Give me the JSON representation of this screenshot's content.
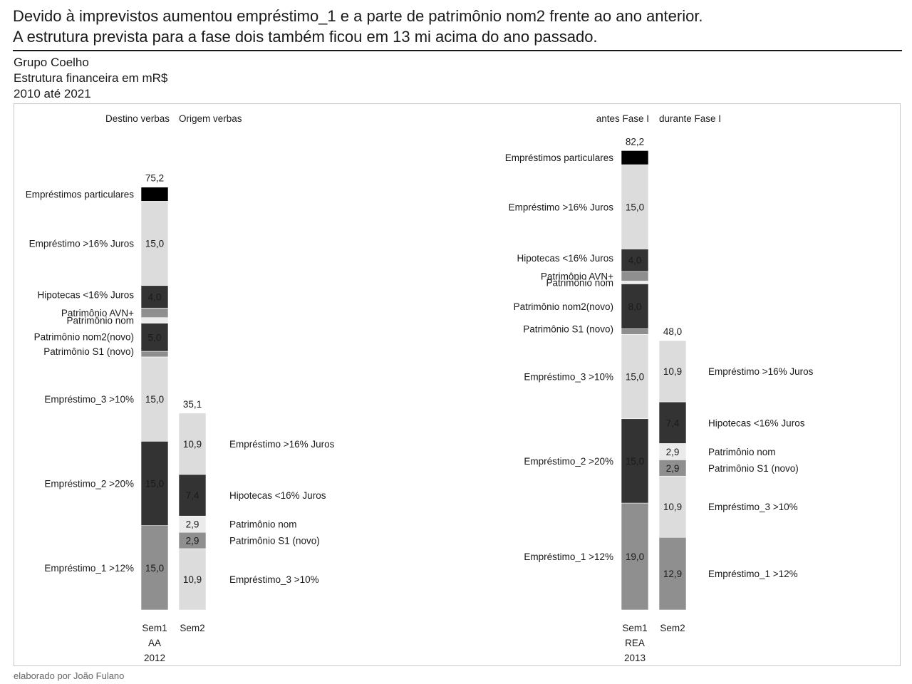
{
  "headline": {
    "line1": "Devido à imprevistos aumentou empréstimo_1 e a parte de patrimônio nom2 frente ao ano anterior.",
    "line2": "A estrutura prevista para a fase dois também ficou em 13 mi acima do ano passado."
  },
  "meta": {
    "company": "Grupo Coelho",
    "subject": "Estrutura financeira em mR$",
    "period": "2010 até 2021"
  },
  "footer": "elaborado por João Fulano",
  "colors": {
    "black": "#000000",
    "dark": "#333333",
    "mid": "#8f8f8f",
    "light": "#dcdcdc",
    "verylight": "#ebebeb"
  },
  "chart_data": [
    {
      "type": "bar",
      "stacked": true,
      "headers": [
        "Destino verbas",
        "Origem verbas"
      ],
      "bars": [
        {
          "category": [
            "Sem1",
            "AA",
            "2012"
          ],
          "total": "75,2",
          "segments": [
            {
              "name": "Empréstimo_1 >12%",
              "value": 15.0,
              "label": "15,0",
              "color": "mid"
            },
            {
              "name": "Empréstimo_2 >20%",
              "value": 15.0,
              "label": "15,0",
              "color": "dark"
            },
            {
              "name": "Empréstimo_3 >10%",
              "value": 15.0,
              "label": "15,0",
              "color": "light"
            },
            {
              "name": "Patrimônio S1 (novo)",
              "value": 1.0,
              "label": "",
              "color": "mid"
            },
            {
              "name": "Patrimônio nom2(novo)",
              "value": 5.0,
              "label": "5,0",
              "color": "dark"
            },
            {
              "name": "Patrimônio nom",
              "value": 1.0,
              "label": "",
              "color": "verylight"
            },
            {
              "name": "Patrimônio AVN+",
              "value": 1.7,
              "label": "",
              "color": "mid"
            },
            {
              "name": "Hipotecas <16% Juros",
              "value": 4.0,
              "label": "4,0",
              "color": "dark"
            },
            {
              "name": "Empréstimo >16% Juros",
              "value": 15.0,
              "label": "15,0",
              "color": "light"
            },
            {
              "name": "Empréstimos particulares",
              "value": 2.5,
              "label": "",
              "color": "black"
            }
          ]
        },
        {
          "category": [
            "Sem2"
          ],
          "total": "35,1",
          "segments": [
            {
              "name": "Empréstimo_3 >10%",
              "value": 10.9,
              "label": "10,9",
              "color": "light"
            },
            {
              "name": "Patrimônio S1 (novo)",
              "value": 2.9,
              "label": "2,9",
              "color": "mid"
            },
            {
              "name": "Patrimônio nom",
              "value": 2.9,
              "label": "2,9",
              "color": "verylight"
            },
            {
              "name": "Hipotecas <16% Juros",
              "value": 7.4,
              "label": "7,4",
              "color": "dark"
            },
            {
              "name": "Empréstimo >16% Juros",
              "value": 10.9,
              "label": "10,9",
              "color": "light"
            }
          ]
        }
      ]
    },
    {
      "type": "bar",
      "stacked": true,
      "headers": [
        "antes Fase I",
        "durante Fase I"
      ],
      "bars": [
        {
          "category": [
            "Sem1",
            "REA",
            "2013"
          ],
          "total": "82,2",
          "segments": [
            {
              "name": "Empréstimo_1 >12%",
              "value": 19.0,
              "label": "19,0",
              "color": "mid"
            },
            {
              "name": "Empréstimo_2 >20%",
              "value": 15.0,
              "label": "15,0",
              "color": "dark"
            },
            {
              "name": "Empréstimo_3 >10%",
              "value": 15.0,
              "label": "15,0",
              "color": "light"
            },
            {
              "name": "Patrimônio S1 (novo)",
              "value": 1.0,
              "label": "",
              "color": "mid"
            },
            {
              "name": "Patrimônio nom2(novo)",
              "value": 8.0,
              "label": "8,0",
              "color": "dark"
            },
            {
              "name": "Patrimônio nom",
              "value": 0.5,
              "label": "",
              "color": "verylight"
            },
            {
              "name": "Patrimônio AVN+",
              "value": 1.7,
              "label": "",
              "color": "mid"
            },
            {
              "name": "Hipotecas <16% Juros",
              "value": 4.0,
              "label": "4,0",
              "color": "dark"
            },
            {
              "name": "Empréstimo >16% Juros",
              "value": 15.0,
              "label": "15,0",
              "color": "light"
            },
            {
              "name": "Empréstimos particulares",
              "value": 2.5,
              "label": "",
              "color": "black"
            }
          ]
        },
        {
          "category": [
            "Sem2"
          ],
          "total": "48,0",
          "segments": [
            {
              "name": "Empréstimo_1 >12%",
              "value": 12.9,
              "label": "12,9",
              "color": "mid"
            },
            {
              "name": "Empréstimo_3 >10%",
              "value": 10.9,
              "label": "10,9",
              "color": "light"
            },
            {
              "name": "Patrimônio S1 (novo)",
              "value": 2.9,
              "label": "2,9",
              "color": "mid"
            },
            {
              "name": "Patrimônio nom",
              "value": 2.9,
              "label": "2,9",
              "color": "verylight"
            },
            {
              "name": "Hipotecas <16% Juros",
              "value": 7.4,
              "label": "7,4",
              "color": "dark"
            },
            {
              "name": "Empréstimo >16% Juros",
              "value": 10.9,
              "label": "10,9",
              "color": "light"
            }
          ]
        }
      ]
    }
  ]
}
